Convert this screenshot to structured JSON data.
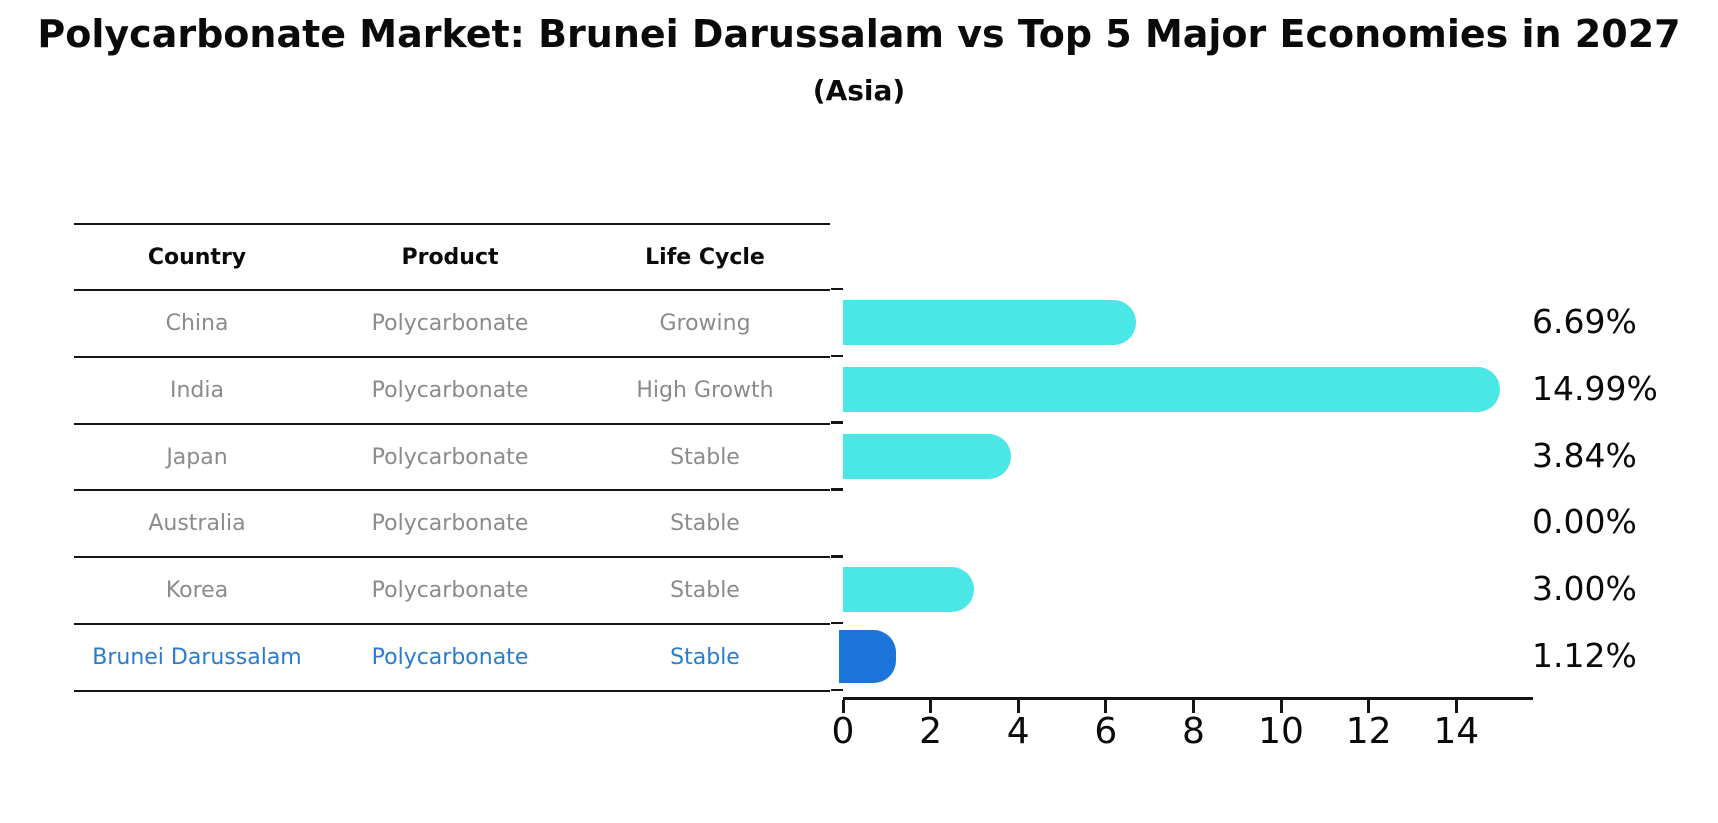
{
  "title": "Polycarbonate Market: Brunei Darussalam vs Top 5 Major Economies in 2027",
  "subtitle": "(Asia)",
  "table": {
    "columns": [
      "Country",
      "Product",
      "Life Cycle"
    ],
    "rows": [
      {
        "country": "China",
        "product": "Polycarbonate",
        "life_cycle": "Growing",
        "highlight": false
      },
      {
        "country": "India",
        "product": "Polycarbonate",
        "life_cycle": "High Growth",
        "highlight": false
      },
      {
        "country": "Japan",
        "product": "Polycarbonate",
        "life_cycle": "Stable",
        "highlight": false
      },
      {
        "country": "Australia",
        "product": "Polycarbonate",
        "life_cycle": "Stable",
        "highlight": false
      },
      {
        "country": "Korea",
        "product": "Polycarbonate",
        "life_cycle": "Stable",
        "highlight": false
      },
      {
        "country": "Brunei Darussalam",
        "product": "Polycarbonate",
        "life_cycle": "Stable",
        "highlight": true
      }
    ]
  },
  "chart_data": {
    "type": "bar",
    "orientation": "horizontal",
    "title": "Polycarbonate Market: Brunei Darussalam vs Top 5 Major Economies in 2027",
    "subtitle": "(Asia)",
    "categories": [
      "China",
      "India",
      "Japan",
      "Australia",
      "Korea",
      "Brunei Darussalam"
    ],
    "values": [
      6.69,
      14.99,
      3.84,
      0.0,
      3.0,
      1.12
    ],
    "value_labels": [
      "6.69%",
      "14.99%",
      "3.84%",
      "0.00%",
      "3.00%",
      "1.12%"
    ],
    "xticks": [
      0,
      2,
      4,
      6,
      8,
      10,
      12,
      14
    ],
    "xlim": [
      0,
      15.73
    ],
    "grid": false,
    "legend": "none",
    "highlight_index": 5
  },
  "colors": {
    "bar": "#4BE6E6",
    "highlight_bar": "#1B74DA",
    "highlight_text": "#2B7BCC",
    "row_text": "#8b8b8b",
    "axis": "#151515"
  }
}
